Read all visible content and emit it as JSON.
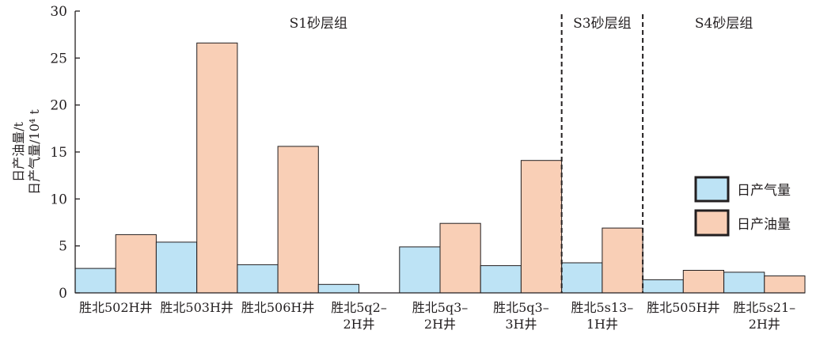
{
  "chart_data": {
    "type": "bar",
    "title": "",
    "xlabel": "",
    "ylabel": [
      "日产油量/t",
      "日产气量/10⁴ t"
    ],
    "ylim": [
      0,
      30
    ],
    "yticks": [
      0,
      5,
      10,
      15,
      20,
      25,
      30
    ],
    "categories": [
      "胜北502H井",
      "胜北503H井",
      "胜北506H井",
      "胜北5q2–\n2H井",
      "胜北5q3–\n2H井",
      "胜北5q3–\n3H井",
      "胜北5s13–\n1H井",
      "胜北505H井",
      "胜北5s21–\n2H井"
    ],
    "series": [
      {
        "name": "日产气量",
        "color": "#bde3f5",
        "values": [
          2.6,
          5.4,
          3.0,
          0.9,
          4.9,
          2.9,
          3.2,
          1.4,
          2.2
        ]
      },
      {
        "name": "日产油量",
        "color": "#f9cfb6",
        "values": [
          6.2,
          26.6,
          15.6,
          0,
          7.4,
          14.1,
          6.9,
          2.4,
          1.8
        ]
      }
    ],
    "groups": [
      {
        "label": "S1砂层组",
        "from": 0,
        "to": 5
      },
      {
        "label": "S3砂层组",
        "from": 6,
        "to": 6
      },
      {
        "label": "S4砂层组",
        "from": 7,
        "to": 8
      }
    ],
    "legend_position": "right",
    "grid": false
  }
}
